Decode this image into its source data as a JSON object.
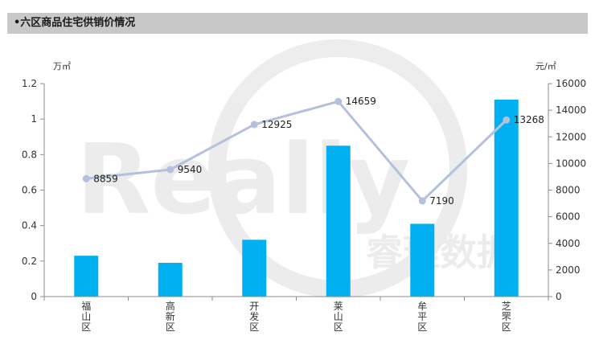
{
  "header": {
    "title": "•六区商品住宅供销价情况"
  },
  "watermark": {
    "brand": "Really",
    "brand_cn": "睿理数据"
  },
  "chart_data": {
    "type": "bar+line",
    "categories": [
      "福山区",
      "高新区",
      "开发区",
      "莱山区",
      "牟平区",
      "芝罘区"
    ],
    "series": [
      {
        "type": "bar",
        "axis": "left",
        "values": [
          0.23,
          0.19,
          0.32,
          0.85,
          0.41,
          1.11
        ],
        "color": "#00b0f0"
      },
      {
        "type": "line",
        "axis": "right",
        "values": [
          8859,
          9540,
          12925,
          14659,
          7190,
          13268
        ],
        "labels": [
          "8859",
          "9540",
          "12925",
          "14659",
          "7190",
          "13268"
        ],
        "color": "#b4c0dc"
      }
    ],
    "left_axis": {
      "unit": "万㎡",
      "range": [
        0,
        1.2
      ],
      "ticks": [
        0,
        0.2,
        0.4,
        0.6,
        0.8,
        1,
        1.2
      ],
      "tick_labels": [
        "0",
        "0.2",
        "0.4",
        "0.6",
        "0.8",
        "1",
        "1.2"
      ]
    },
    "right_axis": {
      "unit": "元/㎡",
      "range": [
        0,
        16000
      ],
      "ticks": [
        0,
        2000,
        4000,
        6000,
        8000,
        10000,
        12000,
        14000,
        16000
      ],
      "tick_labels": [
        "0",
        "2000",
        "4000",
        "6000",
        "8000",
        "10000",
        "12000",
        "14000",
        "16000"
      ]
    },
    "grid": false,
    "legend": "none"
  }
}
